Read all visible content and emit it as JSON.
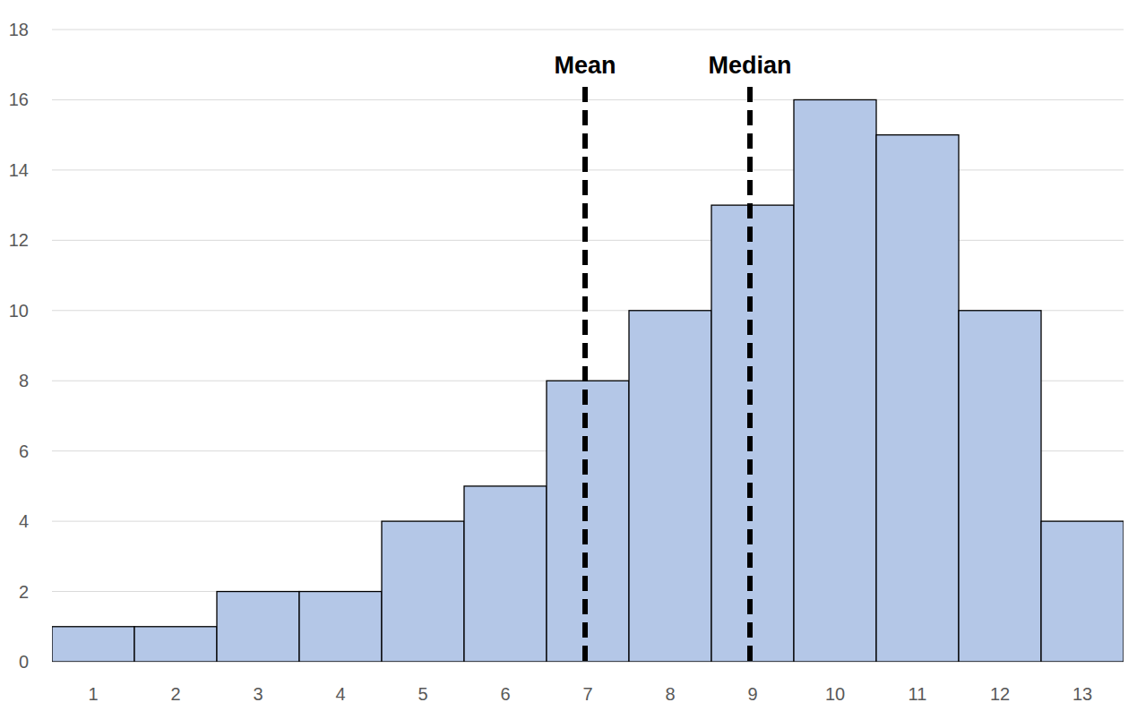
{
  "chart_data": {
    "type": "bar",
    "categories": [
      1,
      2,
      3,
      4,
      5,
      6,
      7,
      8,
      9,
      10,
      11,
      12,
      13
    ],
    "values": [
      1,
      1,
      2,
      2,
      4,
      5,
      8,
      10,
      13,
      16,
      15,
      10,
      4
    ],
    "color": "#b4c7e7",
    "ylim": [
      0,
      18
    ],
    "yticks": [
      0,
      2,
      4,
      6,
      8,
      10,
      12,
      14,
      16,
      18
    ],
    "grid": true,
    "annotations": [
      {
        "text": "Mean",
        "x": 7
      },
      {
        "text": "Median",
        "x": 9
      }
    ]
  }
}
